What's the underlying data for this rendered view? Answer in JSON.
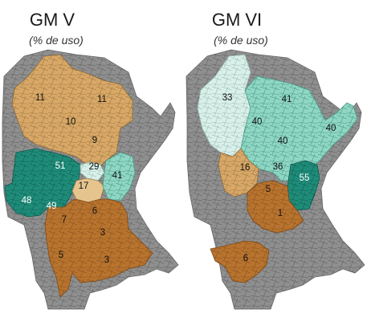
{
  "panels": [
    {
      "title": "GM V",
      "subtitle": "(% de uso)",
      "labels": [
        "11",
        "11",
        "10",
        "9",
        "51",
        "29",
        "41",
        "17",
        "48",
        "49",
        "6",
        "7",
        "3",
        "5",
        "3"
      ]
    },
    {
      "title": "GM VI",
      "subtitle": "(% de uso)",
      "labels": [
        "33",
        "41",
        "40",
        "40",
        "40",
        "16",
        "36",
        "55",
        "5",
        "1",
        "6"
      ]
    }
  ],
  "colors": {
    "background_land": "#8c8c8c",
    "border": "#6e6e6e",
    "tan": "#d9a866",
    "brown": "#b8732e",
    "teal_dark": "#1f8c7a",
    "teal_light": "#8fd6c4",
    "mint_pale": "#d9f0ea"
  }
}
